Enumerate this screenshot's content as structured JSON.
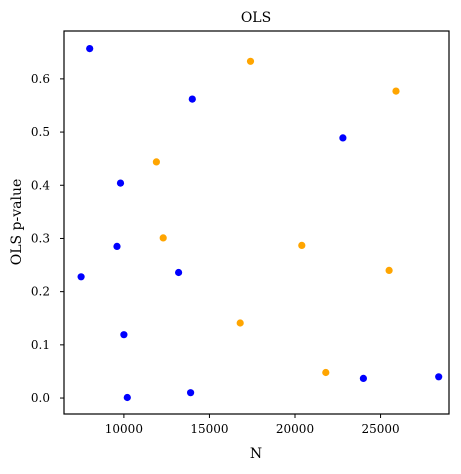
{
  "chart_data": {
    "type": "scatter",
    "title": "OLS",
    "xlabel": "N",
    "ylabel": "OLS p-value",
    "xlim": [
      6500,
      29000
    ],
    "ylim": [
      -0.03,
      0.69
    ],
    "xticks": [
      10000,
      15000,
      20000,
      25000
    ],
    "xtick_labels": [
      "10000",
      "15000",
      "20000",
      "25000"
    ],
    "yticks": [
      0.0,
      0.1,
      0.2,
      0.3,
      0.4,
      0.5,
      0.6
    ],
    "ytick_labels": [
      "0.0",
      "0.1",
      "0.2",
      "0.3",
      "0.4",
      "0.5",
      "0.6"
    ],
    "grid": false,
    "series": [
      {
        "color": "#0000ff",
        "points": [
          {
            "x": 8000,
            "y": 0.657
          },
          {
            "x": 14000,
            "y": 0.562
          },
          {
            "x": 22800,
            "y": 0.489
          },
          {
            "x": 9800,
            "y": 0.404
          },
          {
            "x": 9600,
            "y": 0.285
          },
          {
            "x": 13200,
            "y": 0.236
          },
          {
            "x": 7500,
            "y": 0.228
          },
          {
            "x": 10000,
            "y": 0.119
          },
          {
            "x": 10200,
            "y": 0.001
          },
          {
            "x": 13900,
            "y": 0.01
          },
          {
            "x": 24000,
            "y": 0.037
          },
          {
            "x": 28400,
            "y": 0.04
          }
        ]
      },
      {
        "color": "#ffa500",
        "points": [
          {
            "x": 17400,
            "y": 0.633
          },
          {
            "x": 25900,
            "y": 0.577
          },
          {
            "x": 11900,
            "y": 0.444
          },
          {
            "x": 12300,
            "y": 0.301
          },
          {
            "x": 20400,
            "y": 0.287
          },
          {
            "x": 25500,
            "y": 0.24
          },
          {
            "x": 16800,
            "y": 0.141
          },
          {
            "x": 21800,
            "y": 0.048
          }
        ]
      }
    ]
  }
}
